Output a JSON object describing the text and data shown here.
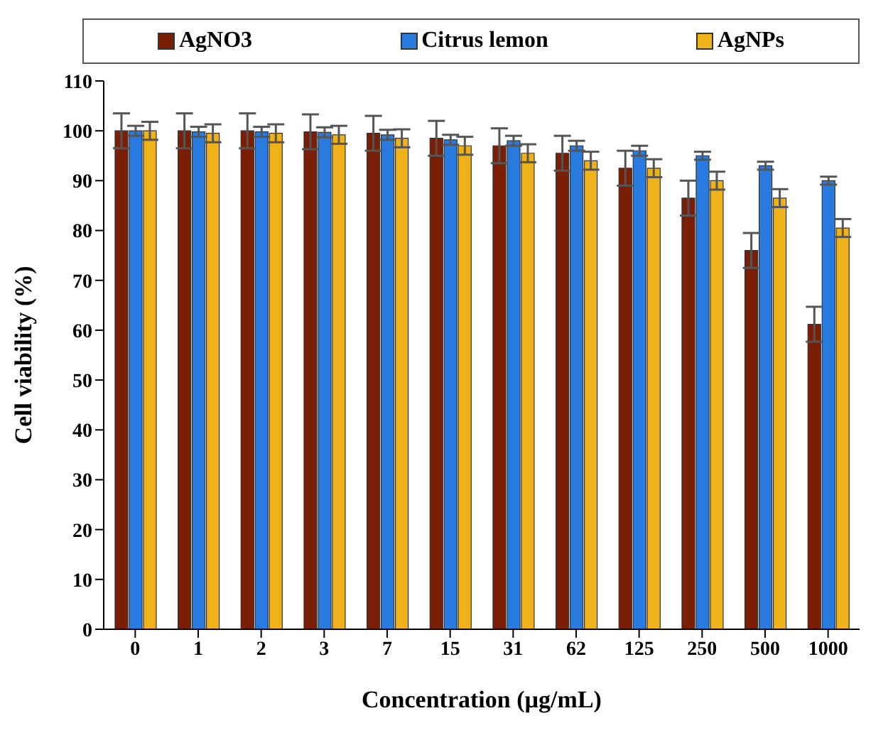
{
  "chart_data": {
    "type": "bar",
    "xlabel": "Concentration (µg/mL)",
    "ylabel": "Cell viability (%)",
    "categories": [
      "0",
      "1",
      "2",
      "3",
      "7",
      "15",
      "31",
      "62",
      "125",
      "250",
      "500",
      "1000"
    ],
    "series": [
      {
        "name": "AgNO3",
        "color": "#7a1e05",
        "values": [
          100,
          100,
          100,
          99.8,
          99.5,
          98.5,
          97,
          95.5,
          92.5,
          86.5,
          76,
          61.2
        ],
        "errors": [
          3.5,
          3.5,
          3.5,
          3.5,
          3.5,
          3.5,
          3.5,
          3.5,
          3.5,
          3.5,
          3.5,
          3.5
        ]
      },
      {
        "name": "Citrus lemon",
        "color": "#2a7be0",
        "values": [
          100,
          99.8,
          99.8,
          99.7,
          99.2,
          98.2,
          98,
          97,
          96,
          95,
          93,
          90
        ],
        "errors": [
          1,
          1,
          1,
          1,
          1,
          1,
          1,
          1,
          1,
          0.8,
          0.8,
          0.8
        ]
      },
      {
        "name": "AgNPs",
        "color": "#f0b21a",
        "values": [
          100,
          99.5,
          99.5,
          99.2,
          98.5,
          97,
          95.5,
          94,
          92.5,
          90,
          86.5,
          80.5
        ],
        "errors": [
          1.8,
          1.8,
          1.8,
          1.8,
          1.8,
          1.8,
          1.8,
          1.8,
          1.8,
          1.8,
          1.8,
          1.8
        ]
      }
    ],
    "ylim": [
      0,
      110
    ],
    "yticks": [
      0,
      10,
      20,
      30,
      40,
      50,
      60,
      70,
      80,
      90,
      100,
      110
    ],
    "grid": false,
    "legend": "top"
  }
}
